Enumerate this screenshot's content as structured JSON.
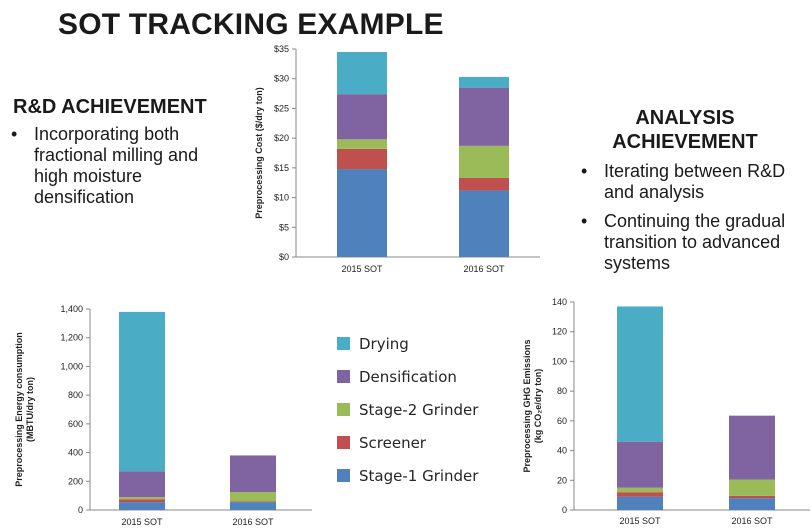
{
  "slide": {
    "title": "SOT TRACKING EXAMPLE",
    "left": {
      "heading": "R&D ACHIEVEMENT",
      "bullets": [
        [
          "Incorporating both",
          "fractional milling and",
          "high moisture",
          "densification"
        ]
      ]
    },
    "right": {
      "heading": [
        "ANALYSIS",
        "ACHIEVEMENT"
      ],
      "bullets": [
        [
          "Iterating between R&D",
          "and analysis"
        ],
        [
          "Continuing the gradual",
          "transition to advanced",
          "systems"
        ]
      ]
    }
  },
  "colors": {
    "Drying": "#4bacc6",
    "Densification": "#8064a2",
    "Stage-2 Grinder": "#9bbb59",
    "Screener": "#c0504d",
    "Stage-1 Grinder": "#4f81bd"
  },
  "legend": [
    "Drying",
    "Densification",
    "Stage-2 Grinder",
    "Screener",
    "Stage-1 Grinder"
  ],
  "chart_data": [
    {
      "type": "bar",
      "stacked": true,
      "categories": [
        "2015 SOT",
        "2016 SOT"
      ],
      "ylabel": "Preprocessing Cost ($/dry ton)",
      "ylim": [
        0,
        35
      ],
      "yticks": [
        "$0",
        "$5",
        "$10",
        "$15",
        "$20",
        "$25",
        "$30",
        "$35"
      ],
      "yticks_values": [
        0,
        5,
        10,
        15,
        20,
        25,
        30,
        35
      ],
      "series": [
        {
          "name": "Stage-1 Grinder",
          "values": [
            14.8,
            11.2
          ]
        },
        {
          "name": "Screener",
          "values": [
            3.4,
            2.1
          ]
        },
        {
          "name": "Stage-2 Grinder",
          "values": [
            1.6,
            5.4
          ]
        },
        {
          "name": "Densification",
          "values": [
            7.6,
            9.8
          ]
        },
        {
          "name": "Drying",
          "values": [
            7.1,
            1.8
          ]
        }
      ],
      "grid": false
    },
    {
      "type": "bar",
      "stacked": true,
      "categories": [
        "2015 SOT",
        "2016 SOT"
      ],
      "ylabel": [
        "Preprocessing Energy consumption",
        "(MBTU/dry ton)"
      ],
      "ylim": [
        0,
        1400
      ],
      "yticks": [
        "0",
        "200",
        "400",
        "600",
        "800",
        "1,000",
        "1,200",
        "1,400"
      ],
      "yticks_values": [
        0,
        200,
        400,
        600,
        800,
        1000,
        1200,
        1400
      ],
      "series": [
        {
          "name": "Stage-1 Grinder",
          "values": [
            55,
            55
          ]
        },
        {
          "name": "Screener",
          "values": [
            20,
            5
          ]
        },
        {
          "name": "Stage-2 Grinder",
          "values": [
            15,
            65
          ]
        },
        {
          "name": "Densification",
          "values": [
            180,
            255
          ]
        },
        {
          "name": "Drying",
          "values": [
            1110,
            0
          ]
        }
      ],
      "grid": false
    },
    {
      "type": "bar",
      "stacked": true,
      "categories": [
        "2015 SOT",
        "2016 SOT"
      ],
      "ylabel": [
        "Preprocessing GHG Emissions",
        "(kg CO₂e/dry ton)"
      ],
      "ylim": [
        0,
        140
      ],
      "yticks": [
        "0",
        "20",
        "40",
        "60",
        "80",
        "100",
        "120",
        "140"
      ],
      "yticks_values": [
        0,
        20,
        40,
        60,
        80,
        100,
        120,
        140
      ],
      "series": [
        {
          "name": "Stage-1 Grinder",
          "values": [
            9,
            8
          ]
        },
        {
          "name": "Screener",
          "values": [
            3,
            1.5
          ]
        },
        {
          "name": "Stage-2 Grinder",
          "values": [
            3,
            11
          ]
        },
        {
          "name": "Densification",
          "values": [
            31,
            43
          ]
        },
        {
          "name": "Drying",
          "values": [
            91,
            0
          ]
        }
      ],
      "grid": false
    }
  ]
}
